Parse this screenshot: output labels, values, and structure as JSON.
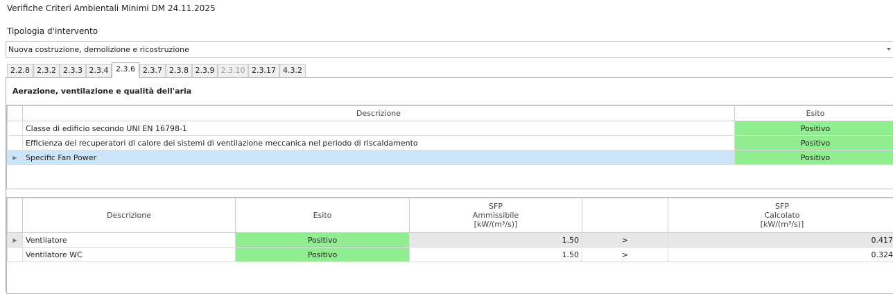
{
  "window": {
    "title": "Verifiche Criteri Ambientali Minimi DM 24.11.2025"
  },
  "tipologia": {
    "label": "Tipologia d'intervento",
    "value": "Nuova costruzione, demolizione e ricostruzione"
  },
  "tabs": [
    {
      "label": "2.2.8",
      "selected": false,
      "disabled": false
    },
    {
      "label": "2.3.2",
      "selected": false,
      "disabled": false
    },
    {
      "label": "2.3.3",
      "selected": false,
      "disabled": false
    },
    {
      "label": "2.3.4",
      "selected": false,
      "disabled": false
    },
    {
      "label": "2.3.6",
      "selected": true,
      "disabled": false
    },
    {
      "label": "2.3.7",
      "selected": false,
      "disabled": false
    },
    {
      "label": "2.3.8",
      "selected": false,
      "disabled": false
    },
    {
      "label": "2.3.9",
      "selected": false,
      "disabled": false
    },
    {
      "label": "2.3.10",
      "selected": false,
      "disabled": true
    },
    {
      "label": "2.3.17",
      "selected": false,
      "disabled": false
    },
    {
      "label": "4.3.2",
      "selected": false,
      "disabled": false
    }
  ],
  "section": {
    "title": "Aerazione, ventilazione e qualità dell'aria"
  },
  "grid1": {
    "headers": [
      "Descrizione",
      "Esito"
    ],
    "rows": [
      {
        "descrizione": "Classe di edificio secondo UNI EN 16798-1",
        "esito": "Positivo"
      },
      {
        "descrizione": "Efficienza dei recuperatori di calore dei sistemi di ventilazione meccanica nel periodo di riscaldamento",
        "esito": "Positivo"
      },
      {
        "descrizione": "Specific Fan Power",
        "esito": "Positivo",
        "selected": true
      }
    ]
  },
  "grid2": {
    "headers": {
      "descrizione": "Descrizione",
      "esito": "Esito",
      "amm": [
        "SFP",
        "Ammissibile",
        "[kW/(m³/s)]"
      ],
      "op": "",
      "calc": [
        "SFP",
        "Calcolato",
        "[kW/(m³/s)]"
      ]
    },
    "rows": [
      {
        "descrizione": "Ventilatore",
        "esito": "Positivo",
        "amm": "1.50",
        "op": ">",
        "calc": "0.417"
      },
      {
        "descrizione": "Ventilatore WC",
        "esito": "Positivo",
        "amm": "1.50",
        "op": ">",
        "calc": "0.324"
      }
    ]
  },
  "colors": {
    "positive": "#90ee90",
    "selected_row": "#cde6f7"
  }
}
